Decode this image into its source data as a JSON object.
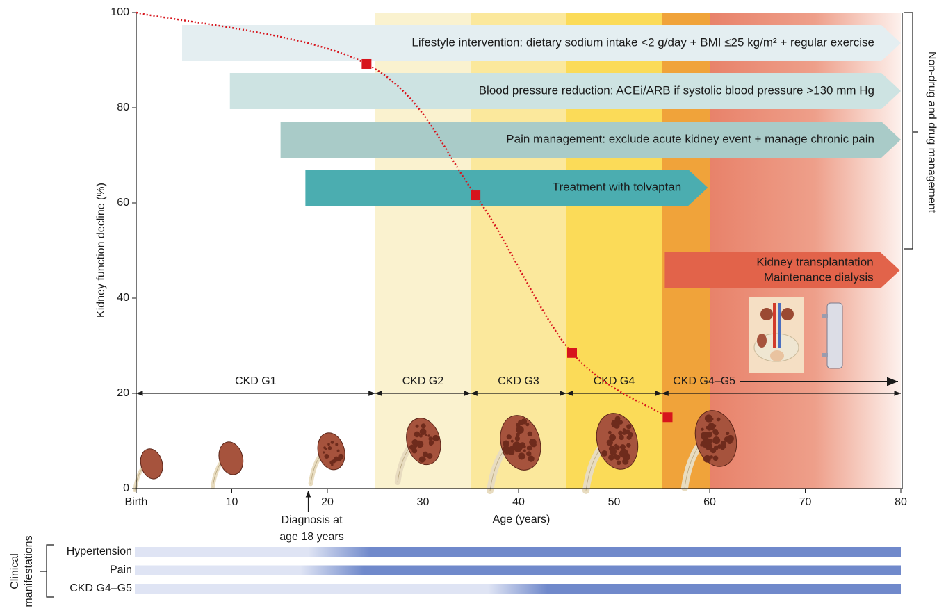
{
  "chart_data": {
    "type": "line",
    "x_label": "Age (years)",
    "y_label": "Kidney function decline (%)",
    "xlim": [
      0,
      80
    ],
    "ylim": [
      0,
      100
    ],
    "xticks": [
      {
        "value": 0,
        "label": "Birth"
      },
      10,
      20,
      30,
      40,
      50,
      60,
      70,
      80
    ],
    "yticks": [
      0,
      20,
      40,
      60,
      80,
      100
    ],
    "x": [
      0,
      24.1,
      35.5,
      45.6,
      55.6
    ],
    "values": [
      100,
      89.2,
      61.6,
      28.5,
      15
    ],
    "color": "#d7141c",
    "stages": [
      {
        "label": "CKD G1",
        "range": [
          0,
          25
        ],
        "color": "#ffffff"
      },
      {
        "label": "CKD G2",
        "range": [
          25,
          35
        ],
        "color": "#faf2cf"
      },
      {
        "label": "CKD G3",
        "range": [
          35,
          45
        ],
        "color": "#fbe89c"
      },
      {
        "label": "CKD G4",
        "range": [
          45,
          55
        ],
        "color": "#fbdb58"
      },
      {
        "label": "CKD G4–G5",
        "range": [
          55,
          80
        ],
        "color": "#f0a33a"
      }
    ],
    "interventions": [
      {
        "label": [
          "Lifestyle intervention: dietary sodium intake <2 g/day + BMI ≤25 kg/m² + regular exercise"
        ],
        "range": [
          4.8,
          80
        ],
        "color": "#e4eef1",
        "text_color": "#1a1a1a"
      },
      {
        "label": [
          "Blood pressure reduction: ACEi/ARB if systolic blood pressure >130 mm Hg"
        ],
        "range": [
          9.8,
          80
        ],
        "color": "#cde3e2",
        "text_color": "#1a1a1a"
      },
      {
        "label": [
          "Pain management: exclude acute kidney event + manage chronic pain"
        ],
        "range": [
          15.1,
          80
        ],
        "color": "#a9cbc8",
        "text_color": "#1a1a1a"
      },
      {
        "label": [
          "Treatment with tolvaptan"
        ],
        "range": [
          17.7,
          59.8
        ],
        "color": "#4badb0",
        "text_color": "#1a1a1a"
      },
      {
        "label": [
          "Kidney transplantation",
          "Maintenance dialysis"
        ],
        "range": [
          55.3,
          79.9
        ],
        "color": "#e2634a",
        "text_color": "#1a1a1a"
      }
    ],
    "annotation": {
      "text": [
        "Diagnosis at",
        "age 18 years"
      ],
      "x": 18
    },
    "bracket_label": "Non-drug and drug management",
    "manifestations": {
      "title": [
        "Clinical",
        "manifestations"
      ],
      "colors": [
        "#dfe4f4",
        "#7089cb"
      ],
      "items": [
        {
          "name": "Hypertension",
          "onset": [
            18,
            24.5
          ]
        },
        {
          "name": "Pain",
          "onset": [
            17.2,
            23.8
          ]
        },
        {
          "name": "CKD G4–G5",
          "onset": [
            36.8,
            43
          ]
        }
      ]
    }
  }
}
